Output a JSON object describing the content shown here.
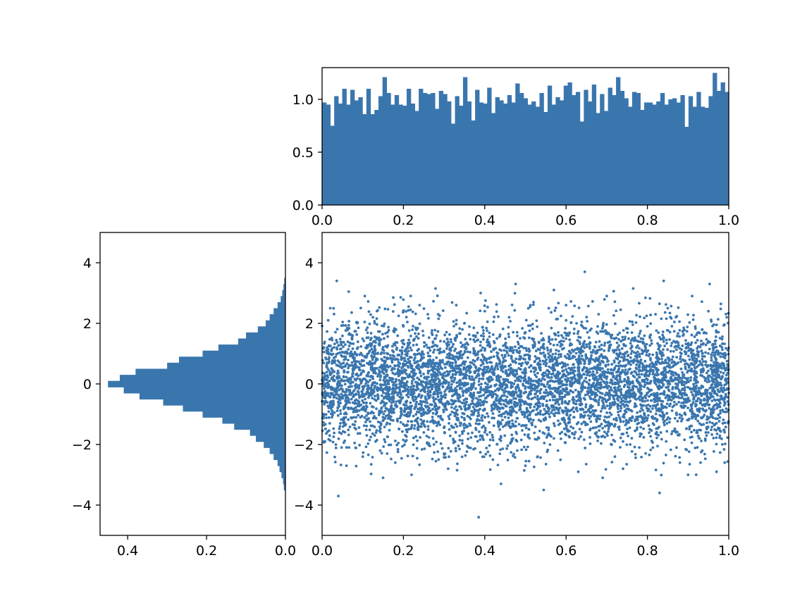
{
  "colors": {
    "bar": "#3a76ae",
    "point": "#3a76ae",
    "frame": "#000000"
  },
  "chart_data": [
    {
      "id": "top-histogram",
      "type": "bar",
      "title": "",
      "xlabel": "",
      "ylabel": "",
      "orientation": "vertical",
      "bin_range": [
        0,
        1
      ],
      "xlim": [
        0,
        1
      ],
      "ylim": [
        0,
        1.3
      ],
      "grid": false,
      "x_ticks": [
        "0.0",
        "0.2",
        "0.4",
        "0.6",
        "0.8",
        "1.0"
      ],
      "y_ticks": [
        "0.0",
        "0.5",
        "1.0"
      ],
      "values": [
        0.97,
        0.95,
        0.75,
        1.03,
        0.96,
        1.1,
        0.95,
        1.09,
        0.99,
        1.02,
        0.86,
        1.1,
        0.86,
        0.9,
        1.03,
        1.21,
        1.06,
        0.95,
        1.04,
        0.95,
        0.94,
        1.1,
        0.96,
        0.89,
        1.1,
        1.06,
        1.05,
        1.06,
        0.91,
        1.08,
        1.05,
        0.98,
        0.77,
        1.03,
        0.94,
        1.21,
        0.98,
        0.8,
        1.09,
        0.97,
        0.96,
        1.11,
        0.87,
        1.02,
        0.99,
        0.96,
        1.04,
        0.97,
        1.15,
        1.06,
        1.01,
        0.95,
        0.98,
        0.93,
        1.06,
        0.88,
        1.13,
        0.95,
        1.02,
        0.99,
        1.13,
        1.16,
        1.04,
        1.07,
        0.79,
        1.09,
        0.98,
        1.14,
        0.87,
        1.05,
        0.89,
        1.11,
        1.04,
        1.21,
        1.08,
        1.01,
        0.93,
        1.07,
        1.06,
        0.9,
        0.97,
        0.97,
        0.95,
        0.98,
        1.06,
        0.95,
        1.0,
        1.01,
        0.97,
        1.04,
        0.74,
        1.03,
        0.93,
        1.07,
        0.93,
        0.92,
        1.03,
        1.25,
        1.08,
        1.16,
        1.07
      ]
    },
    {
      "id": "left-histogram",
      "type": "bar",
      "title": "",
      "xlabel": "",
      "ylabel": "",
      "orientation": "horizontal",
      "xlim": [
        0.47,
        0
      ],
      "ylim": [
        -5,
        5
      ],
      "grid": false,
      "x_ticks": [
        "0.4",
        "0.2",
        "0.0"
      ],
      "y_ticks": [
        "4",
        "2",
        "0",
        "−2",
        "−4"
      ],
      "bins": [
        {
          "y0": -3.5,
          "y1": -3.3,
          "value": 0.004
        },
        {
          "y0": -3.3,
          "y1": -3.1,
          "value": 0.006
        },
        {
          "y0": -3.1,
          "y1": -2.9,
          "value": 0.01
        },
        {
          "y0": -2.9,
          "y1": -2.7,
          "value": 0.015
        },
        {
          "y0": -2.7,
          "y1": -2.5,
          "value": 0.02
        },
        {
          "y0": -2.5,
          "y1": -2.3,
          "value": 0.03
        },
        {
          "y0": -2.3,
          "y1": -2.1,
          "value": 0.04
        },
        {
          "y0": -2.1,
          "y1": -1.9,
          "value": 0.055
        },
        {
          "y0": -1.9,
          "y1": -1.7,
          "value": 0.075
        },
        {
          "y0": -1.7,
          "y1": -1.5,
          "value": 0.09
        },
        {
          "y0": -1.5,
          "y1": -1.3,
          "value": 0.13
        },
        {
          "y0": -1.3,
          "y1": -1.1,
          "value": 0.16
        },
        {
          "y0": -1.1,
          "y1": -0.9,
          "value": 0.21
        },
        {
          "y0": -0.9,
          "y1": -0.7,
          "value": 0.26
        },
        {
          "y0": -0.7,
          "y1": -0.5,
          "value": 0.31
        },
        {
          "y0": -0.5,
          "y1": -0.3,
          "value": 0.37
        },
        {
          "y0": -0.3,
          "y1": -0.1,
          "value": 0.41
        },
        {
          "y0": -0.1,
          "y1": 0.1,
          "value": 0.45
        },
        {
          "y0": 0.1,
          "y1": 0.3,
          "value": 0.42
        },
        {
          "y0": 0.3,
          "y1": 0.5,
          "value": 0.38
        },
        {
          "y0": 0.5,
          "y1": 0.7,
          "value": 0.3
        },
        {
          "y0": 0.7,
          "y1": 0.9,
          "value": 0.27
        },
        {
          "y0": 0.9,
          "y1": 1.1,
          "value": 0.21
        },
        {
          "y0": 1.1,
          "y1": 1.3,
          "value": 0.17
        },
        {
          "y0": 1.3,
          "y1": 1.5,
          "value": 0.12
        },
        {
          "y0": 1.5,
          "y1": 1.7,
          "value": 0.1
        },
        {
          "y0": 1.7,
          "y1": 1.9,
          "value": 0.07
        },
        {
          "y0": 1.9,
          "y1": 2.1,
          "value": 0.05
        },
        {
          "y0": 2.1,
          "y1": 2.3,
          "value": 0.04
        },
        {
          "y0": 2.3,
          "y1": 2.5,
          "value": 0.03
        },
        {
          "y0": 2.5,
          "y1": 2.7,
          "value": 0.02
        },
        {
          "y0": 2.7,
          "y1": 2.9,
          "value": 0.012
        },
        {
          "y0": 2.9,
          "y1": 3.1,
          "value": 0.008
        },
        {
          "y0": 3.1,
          "y1": 3.3,
          "value": 0.005
        },
        {
          "y0": 3.3,
          "y1": 3.5,
          "value": 0.003
        }
      ]
    },
    {
      "id": "main-scatter",
      "type": "scatter",
      "title": "",
      "xlabel": "",
      "ylabel": "",
      "xlim": [
        0,
        1
      ],
      "ylim": [
        -5,
        5
      ],
      "grid": false,
      "x_ticks": [
        "0.0",
        "0.2",
        "0.4",
        "0.6",
        "0.8",
        "1.0"
      ],
      "y_ticks": [
        "4",
        "2",
        "0",
        "−2",
        "−4"
      ],
      "points": [
        [
          0.036,
          3.4
        ],
        [
          0.646,
          3.7
        ],
        [
          0.84,
          3.4
        ],
        [
          0.953,
          3.3
        ],
        [
          0.279,
          3.15
        ],
        [
          0.765,
          3.15
        ],
        [
          0.57,
          3.1
        ],
        [
          0.476,
          3.3
        ],
        [
          0.105,
          2.9
        ],
        [
          0.91,
          2.9
        ],
        [
          0.39,
          3.0
        ],
        [
          0.175,
          2.85
        ],
        [
          0.7,
          2.9
        ],
        [
          0.02,
          2.5
        ],
        [
          0.52,
          2.7
        ],
        [
          0.24,
          2.6
        ],
        [
          0.6,
          2.6
        ],
        [
          0.95,
          2.4
        ],
        [
          0.33,
          2.6
        ],
        [
          0.85,
          2.5
        ],
        [
          0.385,
          -4.4
        ],
        [
          0.04,
          -3.7
        ],
        [
          0.83,
          -3.6
        ],
        [
          0.44,
          -3.3
        ],
        [
          0.545,
          -3.5
        ],
        [
          0.15,
          -3.1
        ],
        [
          0.22,
          -3.0
        ],
        [
          0.69,
          -3.1
        ],
        [
          0.9,
          -3.0
        ],
        [
          0.63,
          -2.9
        ],
        [
          0.06,
          -2.7
        ],
        [
          0.31,
          -2.8
        ],
        [
          0.74,
          -2.8
        ],
        [
          0.97,
          -2.9
        ],
        [
          0.5,
          -2.7
        ],
        [
          0.18,
          -2.6
        ],
        [
          0.88,
          -2.6
        ],
        [
          0.42,
          -2.5
        ],
        [
          0.1,
          -2.4
        ],
        [
          0.99,
          -2.6
        ],
        [
          0.012,
          1.2
        ],
        [
          0.02,
          -0.6
        ],
        [
          0.03,
          0.4
        ],
        [
          0.045,
          -1.3
        ],
        [
          0.055,
          0.9
        ],
        [
          0.065,
          -0.2
        ],
        [
          0.075,
          1.6
        ],
        [
          0.085,
          -0.9
        ],
        [
          0.095,
          0.1
        ],
        [
          0.11,
          -1.7
        ],
        [
          0.12,
          0.7
        ],
        [
          0.13,
          -0.4
        ],
        [
          0.14,
          1.3
        ],
        [
          0.155,
          0.2
        ],
        [
          0.165,
          -1.1
        ],
        [
          0.178,
          0.5
        ],
        [
          0.19,
          -0.3
        ],
        [
          0.2,
          1.9
        ],
        [
          0.21,
          -0.8
        ],
        [
          0.225,
          0.3
        ],
        [
          0.235,
          -1.5
        ],
        [
          0.245,
          1.0
        ],
        [
          0.255,
          -0.1
        ],
        [
          0.265,
          0.8
        ],
        [
          0.275,
          -2.0
        ],
        [
          0.29,
          0.0
        ],
        [
          0.3,
          1.4
        ],
        [
          0.31,
          -0.6
        ],
        [
          0.32,
          0.6
        ],
        [
          0.335,
          -1.2
        ],
        [
          0.345,
          1.8
        ],
        [
          0.355,
          -0.2
        ],
        [
          0.365,
          0.4
        ],
        [
          0.375,
          -0.9
        ],
        [
          0.39,
          1.1
        ],
        [
          0.4,
          -1.6
        ],
        [
          0.41,
          0.2
        ],
        [
          0.42,
          -0.4
        ],
        [
          0.43,
          1.5
        ],
        [
          0.44,
          -0.1
        ],
        [
          0.45,
          0.9
        ],
        [
          0.46,
          -1.3
        ],
        [
          0.47,
          0.3
        ],
        [
          0.48,
          -2.2
        ],
        [
          0.49,
          0.6
        ],
        [
          0.5,
          1.7
        ],
        [
          0.51,
          -0.7
        ],
        [
          0.52,
          0.1
        ],
        [
          0.53,
          -1.0
        ],
        [
          0.54,
          1.2
        ],
        [
          0.55,
          -0.3
        ],
        [
          0.56,
          0.8
        ],
        [
          0.57,
          -1.8
        ],
        [
          0.58,
          0.4
        ],
        [
          0.59,
          -0.5
        ],
        [
          0.6,
          2.1
        ],
        [
          0.61,
          0.0
        ],
        [
          0.62,
          -1.1
        ],
        [
          0.63,
          0.7
        ],
        [
          0.64,
          -0.2
        ],
        [
          0.65,
          1.3
        ],
        [
          0.66,
          -0.8
        ],
        [
          0.67,
          0.2
        ],
        [
          0.68,
          -1.4
        ],
        [
          0.69,
          0.9
        ],
        [
          0.7,
          -0.1
        ],
        [
          0.71,
          1.6
        ],
        [
          0.72,
          -0.6
        ],
        [
          0.73,
          0.5
        ],
        [
          0.74,
          -1.9
        ],
        [
          0.75,
          0.1
        ],
        [
          0.76,
          1.0
        ],
        [
          0.77,
          -0.4
        ],
        [
          0.78,
          0.6
        ],
        [
          0.79,
          -1.2
        ],
        [
          0.8,
          1.9
        ],
        [
          0.81,
          -0.2
        ],
        [
          0.82,
          0.3
        ],
        [
          0.83,
          -0.9
        ],
        [
          0.84,
          1.4
        ],
        [
          0.85,
          -0.1
        ],
        [
          0.86,
          0.7
        ],
        [
          0.87,
          -1.6
        ],
        [
          0.88,
          0.2
        ],
        [
          0.89,
          -0.5
        ],
        [
          0.9,
          1.2
        ],
        [
          0.91,
          -1.0
        ],
        [
          0.92,
          0.4
        ],
        [
          0.93,
          -0.3
        ],
        [
          0.94,
          1.7
        ],
        [
          0.95,
          -0.7
        ],
        [
          0.96,
          0.1
        ],
        [
          0.97,
          -1.3
        ],
        [
          0.98,
          0.9
        ],
        [
          0.99,
          -0.2
        ],
        [
          0.995,
          2.2
        ],
        [
          0.005,
          -1.9
        ],
        [
          0.015,
          2.1
        ],
        [
          0.048,
          -2.1
        ],
        [
          0.26,
          2.3
        ],
        [
          0.3,
          -2.3
        ],
        [
          0.46,
          2.2
        ],
        [
          0.58,
          -2.2
        ],
        [
          0.68,
          2.3
        ],
        [
          0.78,
          -2.1
        ],
        [
          0.87,
          2.2
        ],
        [
          0.935,
          -2.2
        ],
        [
          0.125,
          2.2
        ],
        [
          0.4,
          2.4
        ],
        [
          0.53,
          -2.4
        ],
        [
          0.82,
          2.3
        ],
        [
          0.16,
          -2.3
        ],
        [
          0.72,
          -2.4
        ],
        [
          0.36,
          -2.1
        ],
        [
          0.64,
          1.9
        ],
        [
          0.97,
          1.95
        ],
        [
          0.08,
          -1.95
        ],
        [
          0.23,
          1.85
        ],
        [
          0.49,
          -1.85
        ],
        [
          0.91,
          -1.75
        ]
      ],
      "cloud_count": 5800,
      "cloud_distribution": "x uniform on [0, 1], y standard normal"
    }
  ]
}
